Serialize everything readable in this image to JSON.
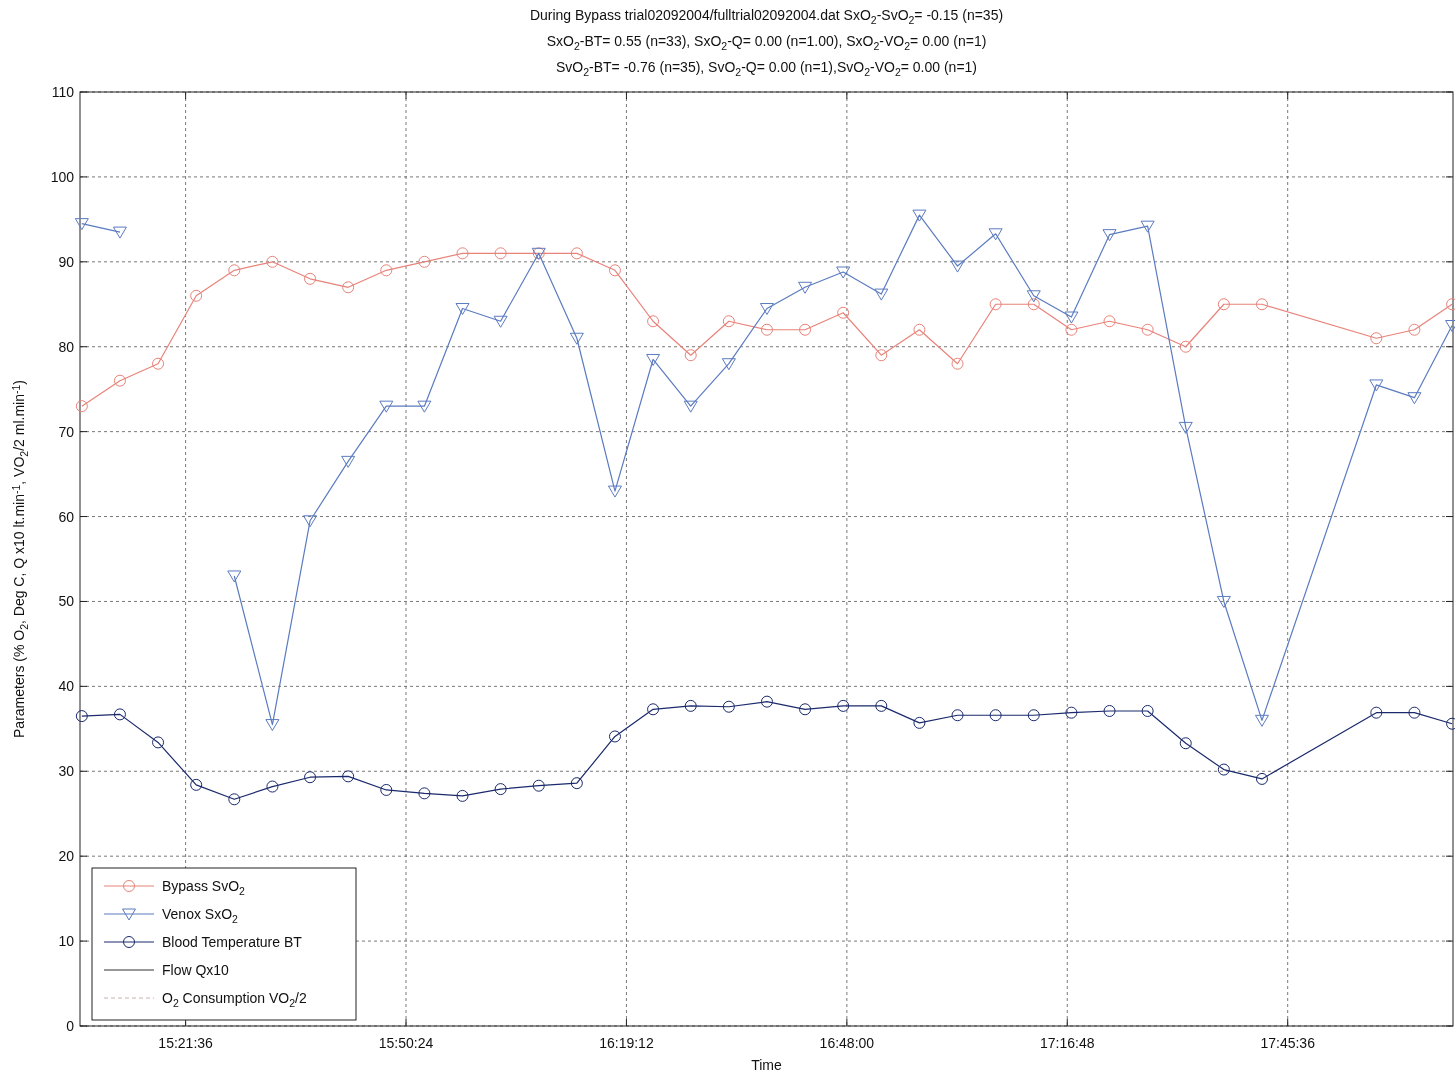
{
  "chart_data": {
    "type": "line",
    "title": "During Bypass trial02092004/fulltrial02092004.dat SxO$_{2}$-SvO$_{2}$= -0.15 (n=35)",
    "subtitle": "SxO$_{2}$-BT= 0.55 (n=33), SxO$_{2}$-Q= 0.00 (n=1.00), SxO$_{2}$-VO$_{2}$= 0.00 (n=1)\nSvO$_{2}$-BT= -0.76 (n=35), SvO$_{2}$-Q= 0.00 (n=1),SvO$_{2}$-VO$_{2}$= 0.00 (n=1)",
    "xlabel": "Time",
    "ylabel": "Parameters (% O$_{2}$, Deg C, Q x10 lt.min$^{-1}$, VO$_{2}$/2 ml.min$^{-1}$)",
    "xlim": [
      15.13,
      18.12
    ],
    "xticks": [
      {
        "value": 15.36,
        "label": "15:21:36"
      },
      {
        "value": 15.84,
        "label": "15:50:24"
      },
      {
        "value": 16.32,
        "label": "16:19:12"
      },
      {
        "value": 16.8,
        "label": "16:48:00"
      },
      {
        "value": 17.28,
        "label": "17:16:48"
      },
      {
        "value": 17.76,
        "label": "17:45:36"
      }
    ],
    "ylim": [
      0,
      110
    ],
    "yticks": [
      0,
      10,
      20,
      30,
      40,
      50,
      60,
      70,
      80,
      90,
      100,
      110
    ],
    "grid": true,
    "legend": "bottom left",
    "series": [
      {
        "name": "Bypass SvO$_{2}$",
        "color": "#e8837a",
        "marker": "circle",
        "x": [
          15.134,
          15.217,
          15.3,
          15.383,
          15.466,
          15.549,
          15.631,
          15.714,
          15.797,
          15.88,
          15.963,
          16.046,
          16.129,
          16.212,
          16.295,
          16.378,
          16.46,
          16.543,
          16.626,
          16.709,
          16.792,
          16.875,
          16.958,
          17.041,
          17.124,
          17.207,
          17.289,
          17.372,
          17.455,
          17.538,
          17.621,
          17.704,
          17.953,
          18.036,
          18.118
        ],
        "values": [
          73,
          76,
          78,
          86,
          89,
          90,
          88,
          87,
          89,
          90,
          91,
          91,
          91,
          91,
          89,
          83,
          79,
          83,
          82,
          82,
          84,
          79,
          82,
          78,
          85,
          85,
          82,
          83,
          82,
          80,
          85,
          85,
          81,
          82,
          85
        ]
      },
      {
        "name": "Venox SxO$_{2}$",
        "color": "#5b7bc0",
        "marker": "triangle",
        "x": [
          15.134,
          15.217,
          15.3,
          15.383,
          15.466,
          15.549,
          15.631,
          15.714,
          15.797,
          15.88,
          15.963,
          16.046,
          16.129,
          16.212,
          16.295,
          16.378,
          16.46,
          16.543,
          16.626,
          16.709,
          16.792,
          16.875,
          16.958,
          17.041,
          17.124,
          17.207,
          17.289,
          17.372,
          17.455,
          17.538,
          17.621,
          17.704,
          17.953,
          18.036,
          18.118
        ],
        "values": [
          94.5,
          93.5,
          null,
          null,
          53,
          35.5,
          59.5,
          66.5,
          73,
          73,
          84.5,
          83,
          91,
          81,
          63,
          78.5,
          73,
          78,
          84.5,
          87,
          88.8,
          86.2,
          95.5,
          89.5,
          93.3,
          86,
          83.5,
          93.2,
          94.2,
          70.5,
          50,
          36,
          75.5,
          74,
          82.5
        ]
      },
      {
        "name": "Blood Temperature BT",
        "color": "#1a2a6c",
        "marker": "circle",
        "x": [
          15.134,
          15.217,
          15.3,
          15.383,
          15.466,
          15.549,
          15.631,
          15.714,
          15.797,
          15.88,
          15.963,
          16.046,
          16.129,
          16.212,
          16.295,
          16.378,
          16.46,
          16.543,
          16.626,
          16.709,
          16.792,
          16.875,
          16.958,
          17.041,
          17.124,
          17.207,
          17.289,
          17.372,
          17.455,
          17.538,
          17.621,
          17.704,
          17.953,
          18.036,
          18.118
        ],
        "values": [
          36.5,
          36.7,
          33.4,
          28.4,
          26.7,
          28.2,
          29.3,
          29.4,
          27.8,
          27.4,
          27.1,
          27.9,
          28.3,
          28.6,
          34.1,
          37.3,
          37.7,
          37.6,
          38.2,
          37.3,
          37.7,
          37.7,
          35.7,
          36.6,
          36.6,
          36.6,
          36.9,
          37.1,
          37.1,
          33.3,
          30.2,
          29.1,
          36.9,
          36.9,
          35.6
        ]
      },
      {
        "name": "Flow Qx10",
        "color": "#333333",
        "marker": "none"
      },
      {
        "name": "O$_{2}$ Consumption VO$_{2}$/2",
        "color": "#c8b0b0",
        "marker": "none",
        "line_style": "dashed"
      }
    ]
  }
}
